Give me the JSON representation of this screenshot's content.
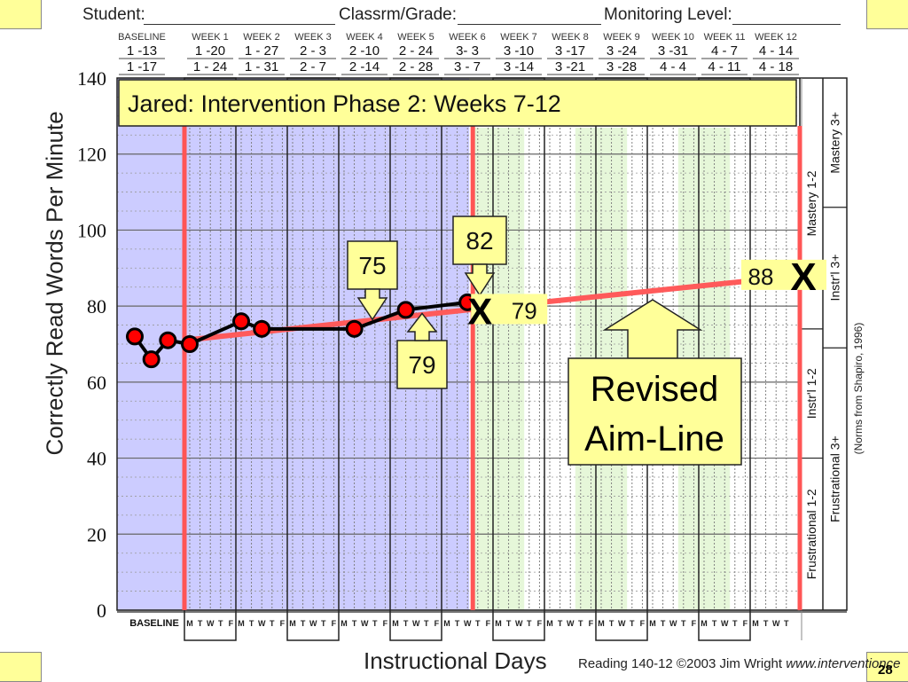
{
  "header": {
    "student_label": "Student:",
    "class_label": "Classrm/Grade:",
    "level_label": "Monitoring Level:"
  },
  "weeks": [
    {
      "label": "BASELINE",
      "d1": "1 -13",
      "d2": "1 -17"
    },
    {
      "label": "WEEK 1",
      "d1": "1 -20",
      "d2": "1 - 24"
    },
    {
      "label": "WEEK 2",
      "d1": "1 - 27",
      "d2": "1 - 31"
    },
    {
      "label": "WEEK 3",
      "d1": "2 - 3",
      "d2": "2 - 7"
    },
    {
      "label": "WEEK 4",
      "d1": "2 -10",
      "d2": "2 -14"
    },
    {
      "label": "WEEK 5",
      "d1": "2 - 24",
      "d2": "2 - 28"
    },
    {
      "label": "WEEK 6",
      "d1": "3- 3",
      "d2": "3 - 7"
    },
    {
      "label": "WEEK 7",
      "d1": "3 -10",
      "d2": "3 -14"
    },
    {
      "label": "WEEK 8",
      "d1": "3 -17",
      "d2": "3 -21"
    },
    {
      "label": "WEEK 9",
      "d1": "3 -24",
      "d2": "3 -28"
    },
    {
      "label": "WEEK 10",
      "d1": "3 -31",
      "d2": "4 - 4"
    },
    {
      "label": "WEEK 11",
      "d1": "4 - 7",
      "d2": "4 - 11"
    },
    {
      "label": "WEEK 12",
      "d1": "4 - 14",
      "d2": "4 - 18"
    }
  ],
  "chart_data": {
    "type": "line",
    "title": "Jared: Intervention Phase 2: Weeks 7-12",
    "ylabel": "Correctly Read Words Per Minute",
    "xlabel": "Instructional Days",
    "ylim": [
      0,
      140
    ],
    "yticks": [
      0,
      20,
      40,
      60,
      80,
      100,
      120,
      140
    ],
    "baseline_label": "BASELINE",
    "day_letters": [
      "M",
      "T",
      "W",
      "T",
      "F"
    ],
    "series": [
      {
        "name": "",
        "color": "#000000",
        "marker_color": "#ff0000",
        "points": [
          {
            "day": 0,
            "value": 72
          },
          {
            "day": 1,
            "value": 66
          },
          {
            "day": 2,
            "value": 71
          },
          {
            "day": 4,
            "value": 70
          },
          {
            "day": 9,
            "value": 76
          },
          {
            "day": 11,
            "value": 74
          },
          {
            "day": 20,
            "value": 74
          },
          {
            "day": 25,
            "value": 79
          },
          {
            "day": 31,
            "value": 81
          }
        ]
      }
    ],
    "aimline_phase1": {
      "start": {
        "day": 3,
        "value": 71
      },
      "end": {
        "day": 31,
        "value": 79
      }
    },
    "aimline_revised": {
      "start": {
        "day": 31,
        "value": 79
      },
      "end": {
        "day": 62,
        "value": 88
      }
    },
    "phase_lines_day": [
      3,
      31,
      62
    ],
    "shaded_phase": {
      "from_day": 0,
      "to_day": 31,
      "color": "#ccccff"
    },
    "green_columns": [
      {
        "from_day": 32,
        "to_day": 36
      },
      {
        "from_day": 42,
        "to_day": 46
      },
      {
        "from_day": 52,
        "to_day": 56
      }
    ],
    "annotations": {
      "callout_75": "75",
      "callout_79": "79",
      "callout_82": "82",
      "endpoint_79": "79",
      "endpoint_88": "88",
      "x_mark": "X",
      "revised_aim_line": "Revised Aim-Line"
    },
    "norm_bands": {
      "grade_1_2": [
        {
          "label": "Mastery 1-2",
          "from": 74,
          "to": 140
        },
        {
          "label": "Instr'l 1-2",
          "from": 40,
          "to": 74
        },
        {
          "label": "Frustrational 1-2",
          "from": 0,
          "to": 40
        }
      ],
      "grade_3_plus": [
        {
          "label": "Mastery 3+",
          "from": 106,
          "to": 140
        },
        {
          "label": "Instr'l 3+",
          "from": 69,
          "to": 106
        },
        {
          "label": "Frustrational 3+",
          "from": 0,
          "to": 69
        }
      ],
      "source": "(Norms from Shapiro, 1996)"
    }
  },
  "footer": {
    "credit": "Reading 140-12 ©2003 Jim Wright",
    "url": "www.interventionce",
    "page": "28"
  }
}
